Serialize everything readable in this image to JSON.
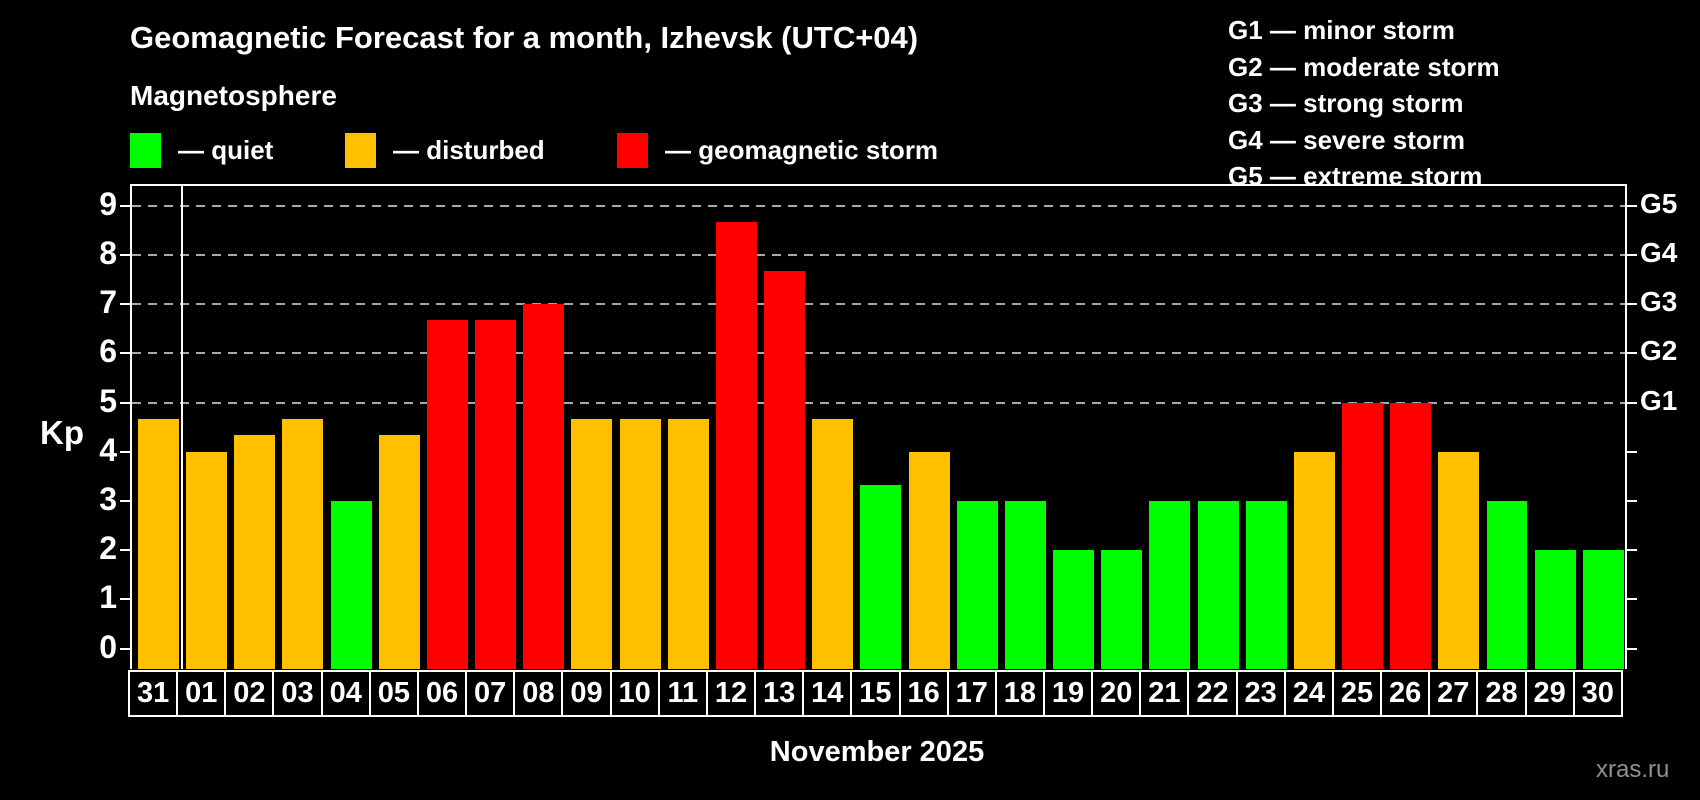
{
  "header": {
    "title": "Geomagnetic Forecast for a month, Izhevsk (UTC+04)",
    "subtitle": "Magnetosphere"
  },
  "legend": {
    "quiet_label": "— quiet",
    "disturbed_label": "— disturbed",
    "storm_label": "— geomagnetic storm"
  },
  "g_scale_legend": {
    "lines": [
      "G1 — minor storm",
      "G2 — moderate storm",
      "G3 — strong storm",
      "G4 — severe storm",
      "G5 — extreme storm"
    ]
  },
  "colors": {
    "quiet": "#00ff00",
    "disturbed": "#ffc000",
    "storm": "#ff0000",
    "grid": "#a8a8a8",
    "axis": "#ffffff",
    "watermark_text": "#8f8f8f"
  },
  "axes": {
    "y_label": "Kp",
    "y_ticks": [
      0,
      1,
      2,
      3,
      4,
      5,
      6,
      7,
      8,
      9
    ],
    "right_labels": [
      {
        "text": "G1",
        "kp": 5
      },
      {
        "text": "G2",
        "kp": 6
      },
      {
        "text": "G3",
        "kp": 7
      },
      {
        "text": "G4",
        "kp": 8
      },
      {
        "text": "G5",
        "kp": 9
      }
    ],
    "x_label": "November 2025"
  },
  "watermark": "xras.ru",
  "chart_data": {
    "type": "bar",
    "title": "Geomagnetic Forecast for a month, Izhevsk (UTC+04)",
    "xlabel": "November 2025",
    "ylabel": "Kp",
    "ylim": [
      -0.42,
      9.45
    ],
    "grid_on_kp": [
      5,
      6,
      7,
      8,
      9
    ],
    "legend_position": "top",
    "categories": [
      "31",
      "01",
      "02",
      "03",
      "04",
      "05",
      "06",
      "07",
      "08",
      "09",
      "10",
      "11",
      "12",
      "13",
      "14",
      "15",
      "16",
      "17",
      "18",
      "19",
      "20",
      "21",
      "22",
      "23",
      "24",
      "25",
      "26",
      "27",
      "28",
      "29",
      "30"
    ],
    "values": [
      4.67,
      4.0,
      4.33,
      4.67,
      3.0,
      4.33,
      6.67,
      6.67,
      7.0,
      4.67,
      4.67,
      4.67,
      8.67,
      7.67,
      4.67,
      3.33,
      4.0,
      3.0,
      3.0,
      2.0,
      2.0,
      3.0,
      3.0,
      3.0,
      4.0,
      5.0,
      5.0,
      4.0,
      3.0,
      2.0,
      2.0
    ],
    "statuses": [
      "disturbed",
      "disturbed",
      "disturbed",
      "disturbed",
      "quiet",
      "disturbed",
      "storm",
      "storm",
      "storm",
      "disturbed",
      "disturbed",
      "disturbed",
      "storm",
      "storm",
      "disturbed",
      "quiet",
      "disturbed",
      "quiet",
      "quiet",
      "quiet",
      "quiet",
      "quiet",
      "quiet",
      "quiet",
      "disturbed",
      "storm",
      "storm",
      "disturbed",
      "quiet",
      "quiet",
      "quiet"
    ],
    "month_separator_after_index": 0
  }
}
